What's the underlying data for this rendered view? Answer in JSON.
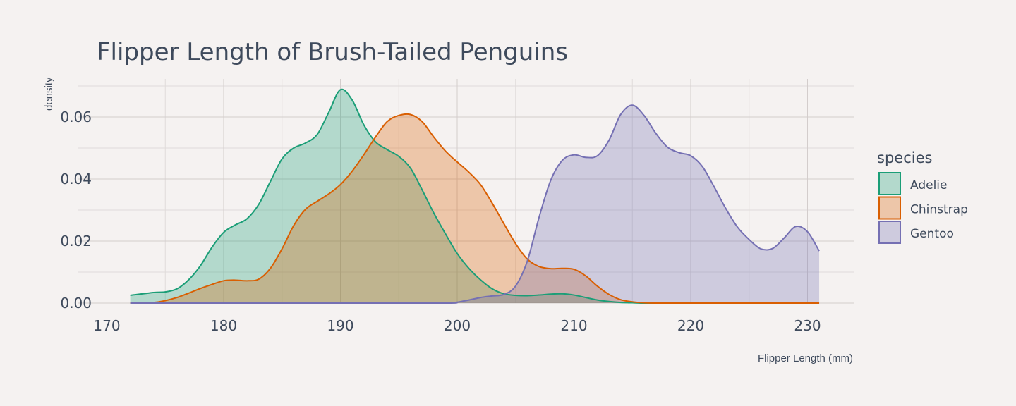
{
  "chart_data": {
    "type": "area",
    "title": "Flipper Length of Brush-Tailed Penguins",
    "xlabel": "Flipper Length (mm)",
    "ylabel": "density",
    "xlim": [
      170,
      233
    ],
    "ylim": [
      0,
      0.07
    ],
    "x_ticks": [
      "170",
      "180",
      "190",
      "200",
      "210",
      "220",
      "230"
    ],
    "y_ticks": [
      "0.00",
      "0.02",
      "0.04",
      "0.06"
    ],
    "grid": true,
    "legend": {
      "title": "species",
      "position": "right"
    },
    "series": [
      {
        "name": "Adelie",
        "color": "#1b9e77",
        "fill": "rgba(27,158,119,0.30)",
        "x": [
          172,
          174,
          175,
          176,
          177,
          178,
          179,
          180,
          181,
          182,
          183,
          184,
          185,
          186,
          187,
          188,
          189,
          190,
          191,
          192,
          193,
          194,
          195,
          196,
          197,
          198,
          199,
          200,
          201,
          202,
          203,
          204,
          205,
          206,
          207,
          208,
          209,
          210,
          211,
          212,
          213,
          214,
          215,
          216,
          217
        ],
        "values": [
          0.0025,
          0.0034,
          0.0036,
          0.0046,
          0.0075,
          0.012,
          0.018,
          0.0228,
          0.0252,
          0.0272,
          0.0318,
          0.0392,
          0.0465,
          0.05,
          0.0516,
          0.0543,
          0.0615,
          0.0688,
          0.0655,
          0.0575,
          0.052,
          0.0495,
          0.0473,
          0.0435,
          0.0365,
          0.029,
          0.0223,
          0.016,
          0.0112,
          0.0075,
          0.0046,
          0.003,
          0.0025,
          0.0024,
          0.0026,
          0.0029,
          0.003,
          0.0026,
          0.0018,
          0.001,
          0.0005,
          0.0002,
          0.0001,
          0.0,
          0.0
        ]
      },
      {
        "name": "Chinstrap",
        "color": "#d95f02",
        "fill": "rgba(217,95,2,0.30)",
        "x": [
          172,
          174,
          175,
          176,
          177,
          178,
          179,
          180,
          181,
          182,
          183,
          184,
          185,
          186,
          187,
          188,
          189,
          190,
          191,
          192,
          193,
          194,
          195,
          196,
          197,
          198,
          199,
          200,
          201,
          202,
          203,
          204,
          205,
          206,
          207,
          208,
          209,
          210,
          211,
          212,
          213,
          214,
          215,
          216,
          217,
          220,
          225,
          231
        ],
        "values": [
          0.0,
          0.0002,
          0.0008,
          0.0018,
          0.0032,
          0.0047,
          0.006,
          0.0072,
          0.0074,
          0.0072,
          0.0077,
          0.0112,
          0.0175,
          0.025,
          0.0302,
          0.0328,
          0.0352,
          0.0382,
          0.0425,
          0.0478,
          0.0535,
          0.0585,
          0.0605,
          0.0608,
          0.0585,
          0.0535,
          0.049,
          0.0455,
          0.0422,
          0.0382,
          0.0322,
          0.0256,
          0.0192,
          0.0142,
          0.0118,
          0.0111,
          0.0112,
          0.0109,
          0.0088,
          0.0055,
          0.0028,
          0.0011,
          0.0004,
          0.0001,
          0.0,
          0.0,
          0.0,
          0.0
        ]
      },
      {
        "name": "Gentoo",
        "color": "#7570b3",
        "fill": "rgba(117,112,179,0.30)",
        "x": [
          172,
          190,
          199,
          200,
          201,
          202,
          203,
          204,
          205,
          206,
          207,
          208,
          209,
          210,
          211,
          212,
          213,
          214,
          215,
          216,
          217,
          218,
          219,
          220,
          221,
          222,
          223,
          224,
          225,
          226,
          227,
          228,
          229,
          230,
          231
        ],
        "values": [
          0.0,
          0.0,
          0.0,
          0.0003,
          0.001,
          0.0018,
          0.0023,
          0.0028,
          0.0055,
          0.0135,
          0.0275,
          0.0395,
          0.046,
          0.0478,
          0.047,
          0.0475,
          0.0525,
          0.0608,
          0.0638,
          0.0605,
          0.0548,
          0.0503,
          0.0485,
          0.0475,
          0.044,
          0.0375,
          0.0305,
          0.0245,
          0.0205,
          0.0175,
          0.0176,
          0.021,
          0.0247,
          0.023,
          0.0168
        ]
      }
    ]
  }
}
